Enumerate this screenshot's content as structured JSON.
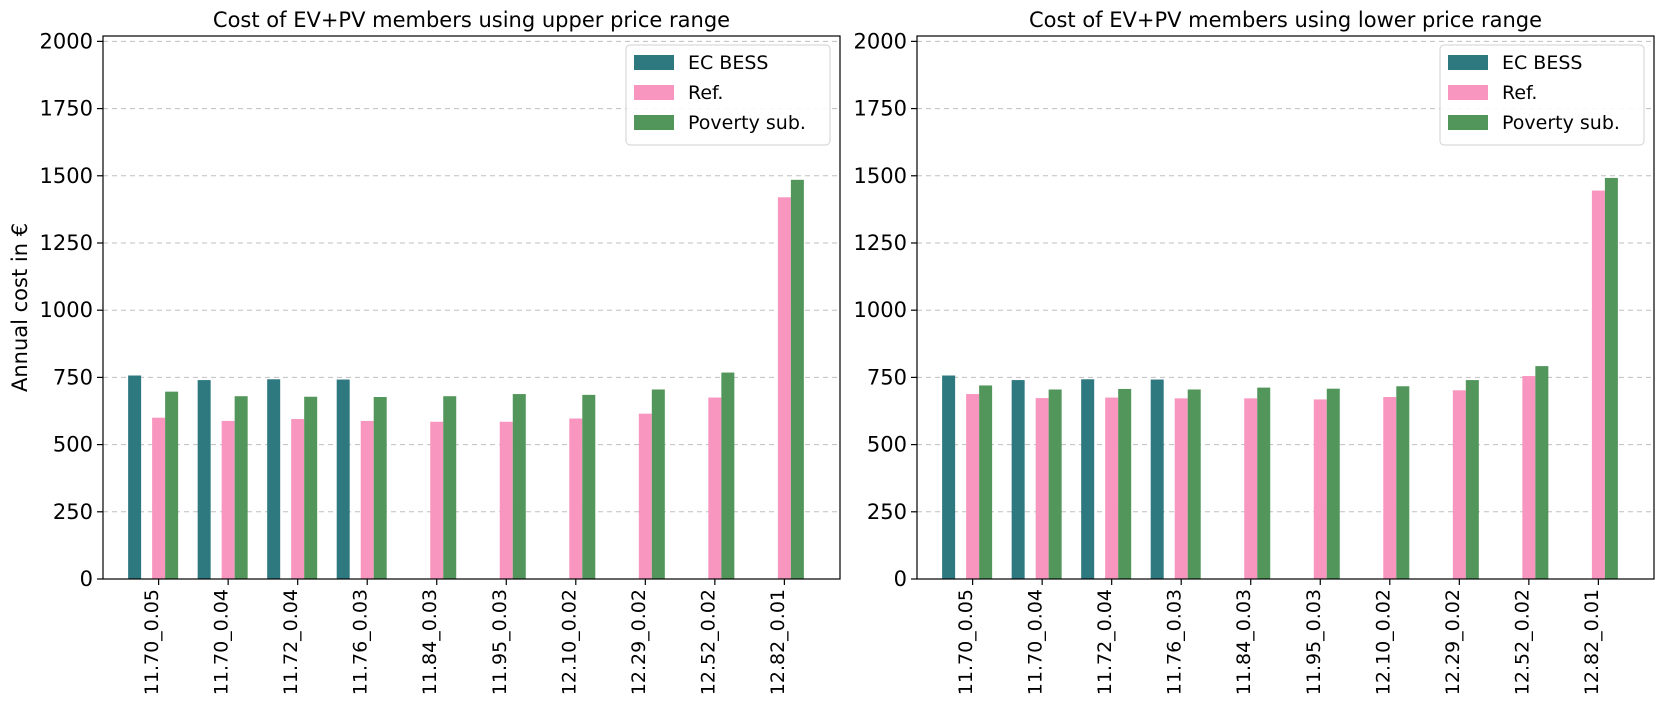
{
  "chart_data": [
    {
      "type": "bar",
      "title": "Cost of EV+PV members using upper price range",
      "xlabel": "",
      "ylabel": "Annual cost in €",
      "ylim": [
        0,
        2020
      ],
      "yticks": [
        0,
        250,
        500,
        750,
        1000,
        1250,
        1500,
        1750,
        2000
      ],
      "grid": "y-dashed",
      "legend_position": "top-right",
      "categories": [
        "11.70_0.05",
        "11.70_0.04",
        "11.72_0.04",
        "11.76_0.03",
        "11.84_0.03",
        "11.95_0.03",
        "12.10_0.02",
        "12.29_0.02",
        "12.52_0.02",
        "12.82_0.01"
      ],
      "series": [
        {
          "name": "EC BESS",
          "color": "#2e7880",
          "values": [
            757,
            740,
            743,
            742,
            null,
            null,
            null,
            null,
            null,
            null
          ]
        },
        {
          "name": "Ref.",
          "color": "#f896bf",
          "values": [
            600,
            588,
            595,
            588,
            585,
            585,
            597,
            615,
            675,
            1420
          ]
        },
        {
          "name": "Poverty sub.",
          "color": "#52965b",
          "values": [
            697,
            680,
            678,
            677,
            680,
            688,
            685,
            705,
            768,
            1485
          ]
        }
      ]
    },
    {
      "type": "bar",
      "title": "Cost of EV+PV members using  lower price range",
      "xlabel": "",
      "ylabel": "",
      "ylim": [
        0,
        2020
      ],
      "yticks": [
        0,
        250,
        500,
        750,
        1000,
        1250,
        1500,
        1750,
        2000
      ],
      "grid": "y-dashed",
      "legend_position": "top-right",
      "categories": [
        "11.70_0.05",
        "11.70_0.04",
        "11.72_0.04",
        "11.76_0.03",
        "11.84_0.03",
        "11.95_0.03",
        "12.10_0.02",
        "12.29_0.02",
        "12.52_0.02",
        "12.82_0.01"
      ],
      "series": [
        {
          "name": "EC BESS",
          "color": "#2e7880",
          "values": [
            757,
            740,
            743,
            742,
            null,
            null,
            null,
            null,
            null,
            null
          ]
        },
        {
          "name": "Ref.",
          "color": "#f896bf",
          "values": [
            688,
            673,
            675,
            672,
            672,
            668,
            677,
            702,
            755,
            1445
          ]
        },
        {
          "name": "Poverty sub.",
          "color": "#52965b",
          "values": [
            720,
            705,
            707,
            705,
            712,
            708,
            717,
            740,
            792,
            1492
          ]
        }
      ]
    }
  ]
}
